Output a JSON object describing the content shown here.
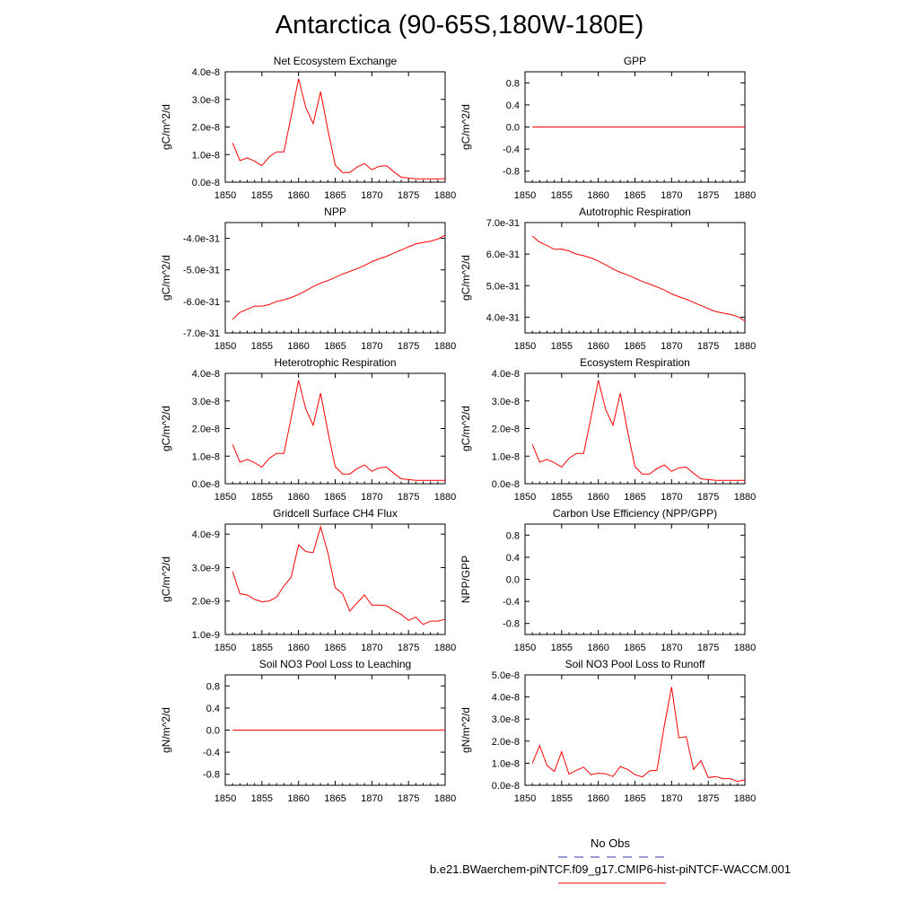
{
  "title": "Antarctica (90-65S,180W-180E)",
  "colors": {
    "model": "#ff0000",
    "obs": "#3333aa",
    "axis": "#000000"
  },
  "legend": {
    "obs_label": "No Obs",
    "case_label": "b.e21.BWaerchem-piNTCF.f09_g17.CMIP6-hist-piNTCF-WACCM.001"
  },
  "chart_data": [
    {
      "type": "line",
      "title": "Net Ecosystem Exchange",
      "xlabel": "",
      "ylabel": "gC/m^2/d",
      "xlim": [
        1850,
        1880
      ],
      "ylim": [
        0,
        4e-08
      ],
      "xticks": [
        1850,
        1855,
        1860,
        1865,
        1870,
        1875,
        1880
      ],
      "yticks": [
        0,
        1e-08,
        2e-08,
        3e-08,
        4e-08
      ],
      "ytick_labels": [
        "0.0e-8",
        "1.0e-8",
        "2.0e-8",
        "3.0e-8",
        "4.0e-8"
      ],
      "x": [
        1851,
        1852,
        1853,
        1854,
        1855,
        1856,
        1857,
        1858,
        1859,
        1860,
        1861,
        1862,
        1863,
        1864,
        1865,
        1866,
        1867,
        1868,
        1869,
        1870,
        1871,
        1872,
        1873,
        1874,
        1875,
        1876,
        1877,
        1878,
        1879,
        1880
      ],
      "y": [
        1.42e-08,
        7.8e-09,
        8.8e-09,
        7.6e-09,
        6e-09,
        9.2e-09,
        1.1e-08,
        1.1e-08,
        2.4e-08,
        3.75e-08,
        2.7e-08,
        2.12e-08,
        3.28e-08,
        1.9e-08,
        6.2e-09,
        3.5e-09,
        3.5e-09,
        5.5e-09,
        6.8e-09,
        4.5e-09,
        5.8e-09,
        6e-09,
        3.8e-09,
        1.8e-09,
        1.5e-09,
        1.2e-09,
        1.2e-09,
        1.2e-09,
        1.2e-09,
        1.2e-09
      ]
    },
    {
      "type": "line",
      "title": "GPP",
      "xlabel": "",
      "ylabel": "gC/m^2/d",
      "xlim": [
        1850,
        1880
      ],
      "ylim": [
        -1.0,
        1.0
      ],
      "xticks": [
        1850,
        1855,
        1860,
        1865,
        1870,
        1875,
        1880
      ],
      "yticks": [
        -0.8,
        -0.4,
        0.0,
        0.4,
        0.8
      ],
      "ytick_labels": [
        "-0.8",
        "-0.4",
        "0.0",
        "0.4",
        "0.8"
      ],
      "x": [
        1851,
        1880
      ],
      "y": [
        0,
        0
      ]
    },
    {
      "type": "line",
      "title": "NPP",
      "xlabel": "",
      "ylabel": "gC/m^2/d",
      "xlim": [
        1850,
        1880
      ],
      "ylim": [
        -7e-31,
        -3.5e-31
      ],
      "xticks": [
        1850,
        1855,
        1860,
        1865,
        1870,
        1875,
        1880
      ],
      "yticks": [
        -7e-31,
        -6e-31,
        -5e-31,
        -4e-31
      ],
      "ytick_labels": [
        "-7.0e-31",
        "-6.0e-31",
        "-5.0e-31",
        "-4.0e-31"
      ],
      "x": [
        1851,
        1852,
        1853,
        1854,
        1855,
        1856,
        1857,
        1858,
        1859,
        1860,
        1861,
        1862,
        1863,
        1864,
        1865,
        1866,
        1867,
        1868,
        1869,
        1870,
        1871,
        1872,
        1873,
        1874,
        1875,
        1876,
        1877,
        1878,
        1879,
        1880
      ],
      "y": [
        -6.57e-31,
        -6.35e-31,
        -6.25e-31,
        -6.15e-31,
        -6.15e-31,
        -6.1e-31,
        -6e-31,
        -5.95e-31,
        -5.88e-31,
        -5.78e-31,
        -5.66e-31,
        -5.53e-31,
        -5.42e-31,
        -5.34e-31,
        -5.24e-31,
        -5.13e-31,
        -5.05e-31,
        -4.96e-31,
        -4.86e-31,
        -4.74e-31,
        -4.65e-31,
        -4.57e-31,
        -4.47e-31,
        -4.37e-31,
        -4.27e-31,
        -4.18e-31,
        -4.13e-31,
        -4.09e-31,
        -4.02e-31,
        -3.9e-31
      ]
    },
    {
      "type": "line",
      "title": "Autotrophic Respiration",
      "xlabel": "",
      "ylabel": "gC/m^2/d",
      "xlim": [
        1850,
        1880
      ],
      "ylim": [
        3.5e-31,
        7e-31
      ],
      "xticks": [
        1850,
        1855,
        1860,
        1865,
        1870,
        1875,
        1880
      ],
      "yticks": [
        4e-31,
        5e-31,
        6e-31,
        7e-31
      ],
      "ytick_labels": [
        "4.0e-31",
        "5.0e-31",
        "6.0e-31",
        "7.0e-31"
      ],
      "x": [
        1851,
        1852,
        1853,
        1854,
        1855,
        1856,
        1857,
        1858,
        1859,
        1860,
        1861,
        1862,
        1863,
        1864,
        1865,
        1866,
        1867,
        1868,
        1869,
        1870,
        1871,
        1872,
        1873,
        1874,
        1875,
        1876,
        1877,
        1878,
        1879,
        1880
      ],
      "y": [
        6.57e-31,
        6.38e-31,
        6.27e-31,
        6.15e-31,
        6.16e-31,
        6.1e-31,
        6e-31,
        5.95e-31,
        5.88e-31,
        5.78e-31,
        5.66e-31,
        5.53e-31,
        5.42e-31,
        5.34e-31,
        5.24e-31,
        5.13e-31,
        5.05e-31,
        4.96e-31,
        4.86e-31,
        4.74e-31,
        4.65e-31,
        4.57e-31,
        4.47e-31,
        4.37e-31,
        4.27e-31,
        4.18e-31,
        4.13e-31,
        4.09e-31,
        4.02e-31,
        3.88e-31
      ]
    },
    {
      "type": "line",
      "title": "Heterotrophic Respiration",
      "xlabel": "",
      "ylabel": "gC/m^2/d",
      "xlim": [
        1850,
        1880
      ],
      "ylim": [
        0,
        4e-08
      ],
      "xticks": [
        1850,
        1855,
        1860,
        1865,
        1870,
        1875,
        1880
      ],
      "yticks": [
        0,
        1e-08,
        2e-08,
        3e-08,
        4e-08
      ],
      "ytick_labels": [
        "0.0e-8",
        "1.0e-8",
        "2.0e-8",
        "3.0e-8",
        "4.0e-8"
      ],
      "x": [
        1851,
        1852,
        1853,
        1854,
        1855,
        1856,
        1857,
        1858,
        1859,
        1860,
        1861,
        1862,
        1863,
        1864,
        1865,
        1866,
        1867,
        1868,
        1869,
        1870,
        1871,
        1872,
        1873,
        1874,
        1875,
        1876,
        1877,
        1878,
        1879,
        1880
      ],
      "y": [
        1.42e-08,
        7.8e-09,
        8.8e-09,
        7.6e-09,
        6e-09,
        9.2e-09,
        1.1e-08,
        1.1e-08,
        2.4e-08,
        3.75e-08,
        2.7e-08,
        2.12e-08,
        3.28e-08,
        1.9e-08,
        6.2e-09,
        3.5e-09,
        3.5e-09,
        5.5e-09,
        6.8e-09,
        4.5e-09,
        5.8e-09,
        6e-09,
        3.8e-09,
        1.8e-09,
        1.5e-09,
        1.2e-09,
        1.2e-09,
        1.2e-09,
        1.2e-09,
        1.2e-09
      ]
    },
    {
      "type": "line",
      "title": "Ecosystem Respiration",
      "xlabel": "",
      "ylabel": "gC/m^2/d",
      "xlim": [
        1850,
        1880
      ],
      "ylim": [
        0,
        4e-08
      ],
      "xticks": [
        1850,
        1855,
        1860,
        1865,
        1870,
        1875,
        1880
      ],
      "yticks": [
        0,
        1e-08,
        2e-08,
        3e-08,
        4e-08
      ],
      "ytick_labels": [
        "0.0e-8",
        "1.0e-8",
        "2.0e-8",
        "3.0e-8",
        "4.0e-8"
      ],
      "x": [
        1851,
        1852,
        1853,
        1854,
        1855,
        1856,
        1857,
        1858,
        1859,
        1860,
        1861,
        1862,
        1863,
        1864,
        1865,
        1866,
        1867,
        1868,
        1869,
        1870,
        1871,
        1872,
        1873,
        1874,
        1875,
        1876,
        1877,
        1878,
        1879,
        1880
      ],
      "y": [
        1.42e-08,
        7.8e-09,
        8.8e-09,
        7.6e-09,
        6e-09,
        9.2e-09,
        1.1e-08,
        1.1e-08,
        2.4e-08,
        3.75e-08,
        2.7e-08,
        2.12e-08,
        3.28e-08,
        1.9e-08,
        6.2e-09,
        3.5e-09,
        3.5e-09,
        5.5e-09,
        6.8e-09,
        4.5e-09,
        5.8e-09,
        6e-09,
        3.8e-09,
        1.8e-09,
        1.5e-09,
        1.2e-09,
        1.2e-09,
        1.2e-09,
        1.2e-09,
        1.2e-09
      ]
    },
    {
      "type": "line",
      "title": "Gridcell Surface CH4 Flux",
      "xlabel": "",
      "ylabel": "gC/m^2/d",
      "xlim": [
        1850,
        1880
      ],
      "ylim": [
        1e-09,
        4.3e-09
      ],
      "xticks": [
        1850,
        1855,
        1860,
        1865,
        1870,
        1875,
        1880
      ],
      "yticks": [
        1e-09,
        2e-09,
        3e-09,
        4e-09
      ],
      "ytick_labels": [
        "1.0e-9",
        "2.0e-9",
        "3.0e-9",
        "4.0e-9"
      ],
      "x": [
        1851,
        1852,
        1853,
        1854,
        1855,
        1856,
        1857,
        1858,
        1859,
        1860,
        1861,
        1862,
        1863,
        1864,
        1865,
        1866,
        1867,
        1868,
        1869,
        1870,
        1871,
        1872,
        1873,
        1874,
        1875,
        1876,
        1877,
        1878,
        1879,
        1880
      ],
      "y": [
        2.88e-09,
        2.22e-09,
        2.18e-09,
        2.05e-09,
        1.98e-09,
        2e-09,
        2.12e-09,
        2.45e-09,
        2.72e-09,
        3.68e-09,
        3.48e-09,
        3.45e-09,
        4.22e-09,
        3.45e-09,
        2.4e-09,
        2.22e-09,
        1.7e-09,
        1.95e-09,
        2.18e-09,
        1.88e-09,
        1.88e-09,
        1.86e-09,
        1.72e-09,
        1.6e-09,
        1.42e-09,
        1.52e-09,
        1.3e-09,
        1.4e-09,
        1.4e-09,
        1.45e-09
      ]
    },
    {
      "type": "line",
      "title": "Carbon Use Efficiency (NPP/GPP)",
      "xlabel": "",
      "ylabel": "NPP/GPP",
      "xlim": [
        1850,
        1880
      ],
      "ylim": [
        -1.0,
        1.0
      ],
      "xticks": [
        1850,
        1855,
        1860,
        1865,
        1870,
        1875,
        1880
      ],
      "yticks": [
        -0.8,
        -0.4,
        0.0,
        0.4,
        0.8
      ],
      "ytick_labels": [
        "-0.8",
        "-0.4",
        "0.0",
        "0.4",
        "0.8"
      ],
      "x": [],
      "y": []
    },
    {
      "type": "line",
      "title": "Soil NO3 Pool Loss to Leaching",
      "xlabel": "",
      "ylabel": "gN/m^2/d",
      "xlim": [
        1850,
        1880
      ],
      "ylim": [
        -1.0,
        1.0
      ],
      "xticks": [
        1850,
        1855,
        1860,
        1865,
        1870,
        1875,
        1880
      ],
      "yticks": [
        -0.8,
        -0.4,
        0.0,
        0.4,
        0.8
      ],
      "ytick_labels": [
        "-0.8",
        "-0.4",
        "0.0",
        "0.4",
        "0.8"
      ],
      "x": [
        1851,
        1880
      ],
      "y": [
        0,
        0
      ]
    },
    {
      "type": "line",
      "title": "Soil NO3 Pool Loss to Runoff",
      "xlabel": "",
      "ylabel": "gN/m^2/d",
      "xlim": [
        1850,
        1880
      ],
      "ylim": [
        0,
        5e-08
      ],
      "xticks": [
        1850,
        1855,
        1860,
        1865,
        1870,
        1875,
        1880
      ],
      "yticks": [
        0,
        1e-08,
        2e-08,
        3e-08,
        4e-08,
        5e-08
      ],
      "ytick_labels": [
        "0.0e-8",
        "1.0e-8",
        "2.0e-8",
        "3.0e-8",
        "4.0e-8",
        "5.0e-8"
      ],
      "x": [
        1851,
        1852,
        1853,
        1854,
        1855,
        1856,
        1857,
        1858,
        1859,
        1860,
        1861,
        1862,
        1863,
        1864,
        1865,
        1866,
        1867,
        1868,
        1869,
        1870,
        1871,
        1872,
        1873,
        1874,
        1875,
        1876,
        1877,
        1878,
        1879,
        1880
      ],
      "y": [
        1e-08,
        1.8e-08,
        9e-09,
        6.2e-09,
        1.52e-08,
        5e-09,
        6.8e-09,
        8.2e-09,
        4.8e-09,
        5.5e-09,
        5.2e-09,
        4e-09,
        8.5e-09,
        7.2e-09,
        4.8e-09,
        3.8e-09,
        6.5e-09,
        6.8e-09,
        2.7e-08,
        4.45e-08,
        2.15e-08,
        2.2e-08,
        7.2e-09,
        1.12e-08,
        3.5e-09,
        4e-09,
        3e-09,
        3e-09,
        1.8e-09,
        2.5e-09
      ]
    }
  ]
}
